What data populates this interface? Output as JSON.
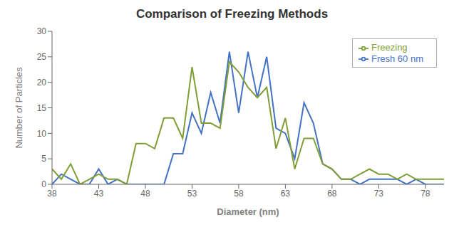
{
  "chart_data": {
    "type": "line",
    "title": "Comparison of Freezing Methods",
    "xlabel": "Diameter (nm)",
    "ylabel": "Number of Particles",
    "x": [
      38,
      39,
      40,
      41,
      42,
      43,
      44,
      45,
      46,
      47,
      48,
      49,
      50,
      51,
      52,
      53,
      54,
      55,
      56,
      57,
      58,
      59,
      60,
      61,
      62,
      63,
      64,
      65,
      66,
      67,
      68,
      69,
      70,
      71,
      72,
      73,
      74,
      75,
      76,
      77,
      78,
      79,
      80
    ],
    "series": [
      {
        "name": "Fresh 60 nm",
        "color": "#4472C4",
        "values": [
          0,
          2,
          1,
          0,
          0,
          3,
          0,
          1,
          0,
          0,
          0,
          0,
          0,
          6,
          6,
          14,
          10,
          18,
          12,
          26,
          14,
          26,
          17,
          25,
          11,
          10,
          5,
          16,
          12,
          4,
          3,
          1,
          1,
          0,
          1,
          1,
          1,
          1,
          0,
          1,
          0,
          0,
          0
        ]
      },
      {
        "name": "Freezing",
        "color": "#7F9E35",
        "values": [
          3,
          1,
          4,
          0,
          1,
          2,
          1,
          1,
          0,
          8,
          8,
          7,
          13,
          13,
          9,
          23,
          12,
          12,
          11,
          24,
          22,
          19,
          17,
          19,
          7,
          13,
          3,
          9,
          9,
          4,
          3,
          1,
          1,
          2,
          3,
          2,
          2,
          1,
          2,
          1,
          1,
          1,
          1
        ]
      }
    ],
    "xlim": [
      38,
      80
    ],
    "ylim": [
      0,
      30
    ],
    "xticks": [
      38,
      43,
      48,
      53,
      58,
      63,
      68,
      73,
      78
    ],
    "yticks": [
      0,
      5,
      10,
      15,
      20,
      25,
      30
    ],
    "grid": false,
    "legend": "upper right"
  }
}
